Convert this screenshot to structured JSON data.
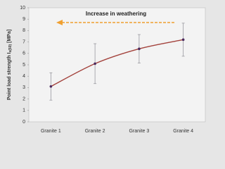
{
  "chart_data": {
    "type": "line",
    "annotation": "Increase in weathering",
    "y_label": [
      "Point load strength I",
      "s(50)",
      " [MPa]"
    ],
    "categories": [
      "Granite 1",
      "Granite 2",
      "Granite 3",
      "Granite 4"
    ],
    "values": [
      3.1,
      5.1,
      6.4,
      7.2
    ],
    "errors": [
      1.2,
      1.75,
      1.25,
      1.45
    ],
    "color": "#a3423c",
    "marker_color": "#4b2a5e",
    "error_color": "#9a9aa0",
    "ylim": [
      0,
      10
    ],
    "yticks": [
      0,
      1,
      2,
      3,
      4,
      5,
      6,
      7,
      8,
      9,
      10
    ]
  }
}
